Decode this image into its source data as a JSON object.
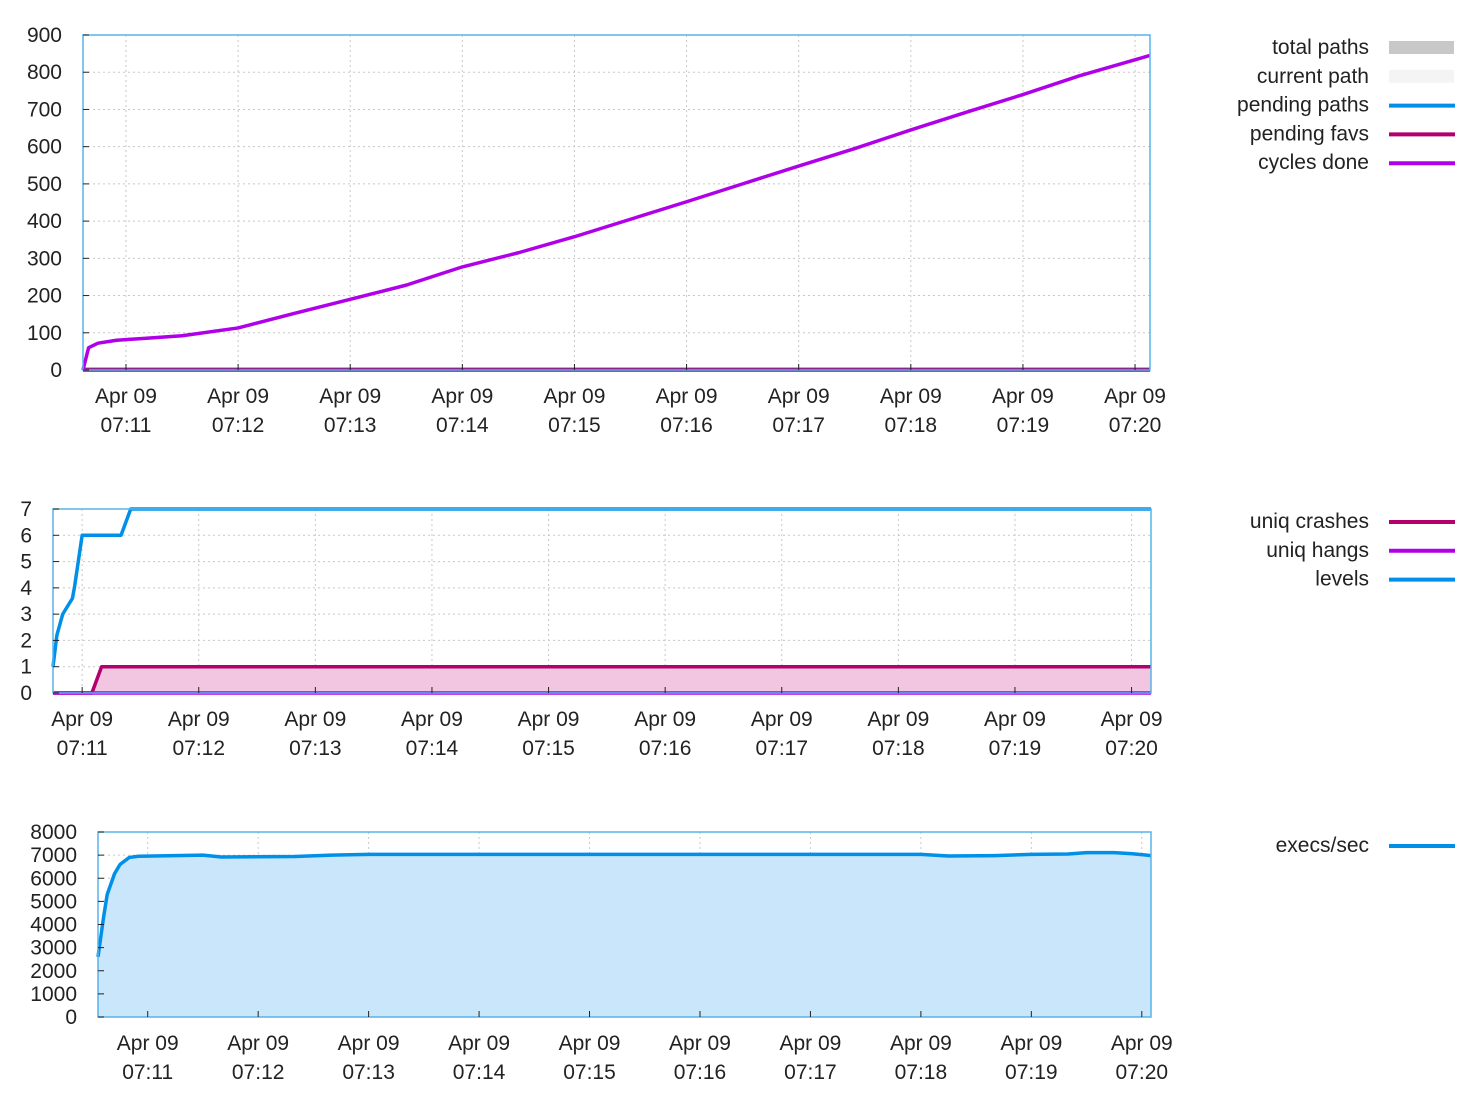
{
  "colors": {
    "frame": "#56b4e9",
    "grid": "#c8c8c8",
    "total_paths": "#c8c8c8",
    "current_path": "#f4f4f4",
    "pending_paths": "#0090e8",
    "pending_favs": "#b3006d",
    "cycles_done": "#b000e8",
    "uniq_crashes": "#b3006d",
    "uniq_hangs": "#b000e8",
    "levels": "#0090e8",
    "crash_fill": "#f2c6e0",
    "execs": "#0090e8",
    "execs_fill": "#c9e6fb",
    "execs_fill_light": "#e1effa"
  },
  "chart_data": [
    {
      "type": "line",
      "id": "paths",
      "ylim": [
        0,
        900
      ],
      "yticks": [
        "0",
        "100",
        "200",
        "300",
        "400",
        "500",
        "600",
        "700",
        "800",
        "900"
      ],
      "xlim": [
        "07:10:37",
        "07:20:08"
      ],
      "xticks": [
        {
          "time": "07:11",
          "l1": "Apr 09",
          "l2": "07:11"
        },
        {
          "time": "07:12",
          "l1": "Apr 09",
          "l2": "07:12"
        },
        {
          "time": "07:13",
          "l1": "Apr 09",
          "l2": "07:13"
        },
        {
          "time": "07:14",
          "l1": "Apr 09",
          "l2": "07:14"
        },
        {
          "time": "07:15",
          "l1": "Apr 09",
          "l2": "07:15"
        },
        {
          "time": "07:16",
          "l1": "Apr 09",
          "l2": "07:16"
        },
        {
          "time": "07:17",
          "l1": "Apr 09",
          "l2": "07:17"
        },
        {
          "time": "07:18",
          "l1": "Apr 09",
          "l2": "07:18"
        },
        {
          "time": "07:19",
          "l1": "Apr 09",
          "l2": "07:19"
        },
        {
          "time": "07:20",
          "l1": "Apr 09",
          "l2": "07:20"
        }
      ],
      "legend": [
        "total paths",
        "current path",
        "pending paths",
        "pending favs",
        "cycles done"
      ],
      "series": [
        {
          "name": "total paths",
          "style": "fill",
          "color_key": "total_paths",
          "points": [
            [
              "07:10:37",
              0
            ],
            [
              "07:20:08",
              0
            ]
          ]
        },
        {
          "name": "current path",
          "style": "fill",
          "color_key": "current_path",
          "points": [
            [
              "07:10:37",
              0
            ],
            [
              "07:20:08",
              0
            ]
          ]
        },
        {
          "name": "pending paths",
          "style": "line",
          "color_key": "pending_paths",
          "points": [
            [
              "07:10:37",
              2
            ],
            [
              "07:20:08",
              2
            ]
          ]
        },
        {
          "name": "pending favs",
          "style": "line",
          "color_key": "pending_favs",
          "points": [
            [
              "07:10:37",
              0
            ],
            [
              "07:20:08",
              0
            ]
          ]
        },
        {
          "name": "cycles done",
          "style": "line",
          "color_key": "cycles_done",
          "points": [
            [
              "07:10:37",
              0
            ],
            [
              "07:10:40",
              60
            ],
            [
              "07:10:45",
              72
            ],
            [
              "07:10:55",
              80
            ],
            [
              "07:11:10",
              85
            ],
            [
              "07:11:30",
              92
            ],
            [
              "07:12:00",
              113
            ],
            [
              "07:12:30",
              152
            ],
            [
              "07:13:00",
              190
            ],
            [
              "07:13:30",
              228
            ],
            [
              "07:14:00",
              277
            ],
            [
              "07:14:30",
              315
            ],
            [
              "07:15:00",
              358
            ],
            [
              "07:15:30",
              405
            ],
            [
              "07:16:00",
              452
            ],
            [
              "07:16:30",
              500
            ],
            [
              "07:17:00",
              548
            ],
            [
              "07:17:30",
              595
            ],
            [
              "07:18:00",
              645
            ],
            [
              "07:18:30",
              693
            ],
            [
              "07:19:00",
              740
            ],
            [
              "07:19:30",
              790
            ],
            [
              "07:20:08",
              845
            ]
          ]
        }
      ]
    },
    {
      "type": "line",
      "id": "crashes",
      "ylim": [
        0,
        7
      ],
      "yticks": [
        "0",
        "1",
        "2",
        "3",
        "4",
        "5",
        "6",
        "7"
      ],
      "xlim": [
        "07:10:45",
        "07:20:10"
      ],
      "xticks": [
        {
          "time": "07:11",
          "l1": "Apr 09",
          "l2": "07:11"
        },
        {
          "time": "07:12",
          "l1": "Apr 09",
          "l2": "07:12"
        },
        {
          "time": "07:13",
          "l1": "Apr 09",
          "l2": "07:13"
        },
        {
          "time": "07:14",
          "l1": "Apr 09",
          "l2": "07:14"
        },
        {
          "time": "07:15",
          "l1": "Apr 09",
          "l2": "07:15"
        },
        {
          "time": "07:16",
          "l1": "Apr 09",
          "l2": "07:16"
        },
        {
          "time": "07:17",
          "l1": "Apr 09",
          "l2": "07:17"
        },
        {
          "time": "07:18",
          "l1": "Apr 09",
          "l2": "07:18"
        },
        {
          "time": "07:19",
          "l1": "Apr 09",
          "l2": "07:19"
        },
        {
          "time": "07:20",
          "l1": "Apr 09",
          "l2": "07:20"
        }
      ],
      "legend": [
        "uniq crashes",
        "uniq hangs",
        "levels"
      ],
      "series": [
        {
          "name": "uniq crashes",
          "style": "fillline",
          "color_key": "uniq_crashes",
          "fill_key": "crash_fill",
          "points": [
            [
              "07:10:45",
              0
            ],
            [
              "07:11:05",
              0
            ],
            [
              "07:11:10",
              1
            ],
            [
              "07:20:10",
              1
            ]
          ]
        },
        {
          "name": "uniq hangs",
          "style": "line",
          "color_key": "uniq_hangs",
          "points": [
            [
              "07:10:45",
              0
            ],
            [
              "07:20:10",
              0
            ]
          ]
        },
        {
          "name": "levels",
          "style": "line",
          "color_key": "levels",
          "points": [
            [
              "07:10:45",
              1
            ],
            [
              "07:10:47",
              2.2
            ],
            [
              "07:10:50",
              3
            ],
            [
              "07:10:55",
              3.6
            ],
            [
              "07:10:56",
              4
            ],
            [
              "07:11:00",
              6
            ],
            [
              "07:11:20",
              6
            ],
            [
              "07:11:25",
              7
            ],
            [
              "07:20:10",
              7
            ]
          ]
        }
      ]
    },
    {
      "type": "area",
      "id": "execs",
      "ylim": [
        0,
        8000
      ],
      "yticks": [
        "0",
        "1000",
        "2000",
        "3000",
        "4000",
        "5000",
        "6000",
        "7000",
        "8000"
      ],
      "xlim": [
        "07:10:33",
        "07:20:05"
      ],
      "xticks": [
        {
          "time": "07:11",
          "l1": "Apr 09",
          "l2": "07:11"
        },
        {
          "time": "07:12",
          "l1": "Apr 09",
          "l2": "07:12"
        },
        {
          "time": "07:13",
          "l1": "Apr 09",
          "l2": "07:13"
        },
        {
          "time": "07:14",
          "l1": "Apr 09",
          "l2": "07:14"
        },
        {
          "time": "07:15",
          "l1": "Apr 09",
          "l2": "07:15"
        },
        {
          "time": "07:16",
          "l1": "Apr 09",
          "l2": "07:16"
        },
        {
          "time": "07:17",
          "l1": "Apr 09",
          "l2": "07:17"
        },
        {
          "time": "07:18",
          "l1": "Apr 09",
          "l2": "07:18"
        },
        {
          "time": "07:19",
          "l1": "Apr 09",
          "l2": "07:19"
        },
        {
          "time": "07:20",
          "l1": "Apr 09",
          "l2": "07:20"
        }
      ],
      "legend": [
        "execs/sec"
      ],
      "series": [
        {
          "name": "execs/sec",
          "style": "arealine",
          "color_key": "execs",
          "fill_key": "execs_fill",
          "points": [
            [
              "07:10:33",
              2600
            ],
            [
              "07:10:36",
              4300
            ],
            [
              "07:10:38",
              5300
            ],
            [
              "07:10:42",
              6200
            ],
            [
              "07:10:45",
              6600
            ],
            [
              "07:10:50",
              6900
            ],
            [
              "07:10:55",
              6950
            ],
            [
              "07:11:30",
              7000
            ],
            [
              "07:11:40",
              6920
            ],
            [
              "07:12:20",
              6940
            ],
            [
              "07:12:40",
              7000
            ],
            [
              "07:13:00",
              7030
            ],
            [
              "07:17:00",
              7030
            ],
            [
              "07:18:00",
              7030
            ],
            [
              "07:18:15",
              6960
            ],
            [
              "07:18:40",
              6980
            ],
            [
              "07:19:00",
              7030
            ],
            [
              "07:19:20",
              7050
            ],
            [
              "07:19:30",
              7110
            ],
            [
              "07:19:45",
              7110
            ],
            [
              "07:19:55",
              7060
            ],
            [
              "07:20:05",
              6980
            ]
          ]
        }
      ]
    }
  ]
}
